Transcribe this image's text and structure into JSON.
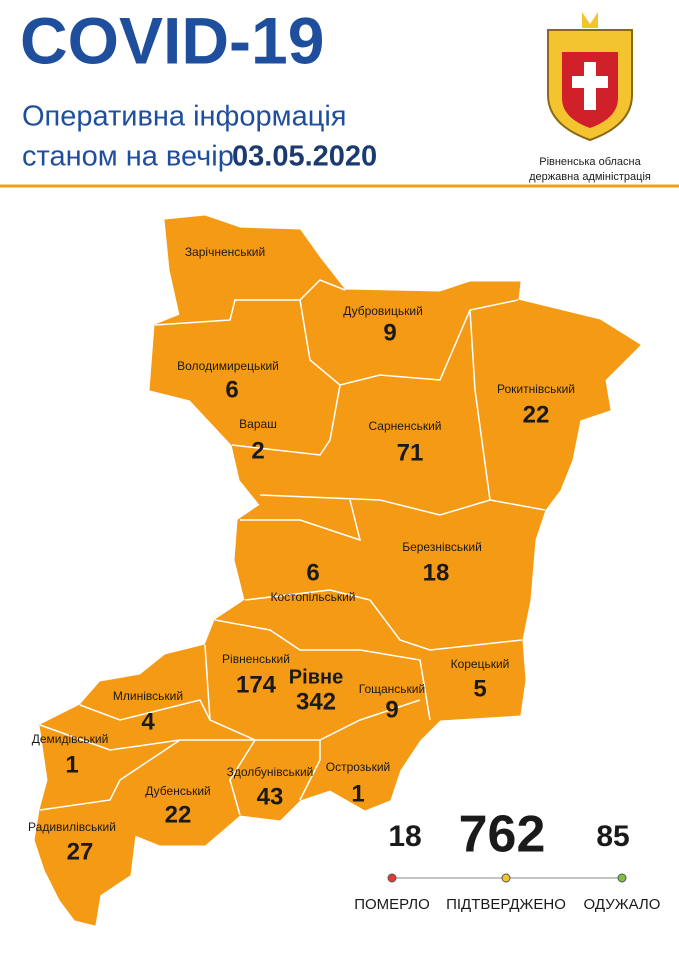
{
  "header": {
    "title": "COVID-19",
    "subtitle": "Оперативна інформація",
    "date_prefix": "станом на вечір",
    "date": "03.05.2020",
    "org_line1": "Рівненська обласна",
    "org_line2": "державна адміністрація"
  },
  "regions": [
    {
      "name": "Зарічненський"
    },
    {
      "name": "Дубровицький",
      "cases": 9
    },
    {
      "name": "Володимирецький",
      "cases": 6
    },
    {
      "name": "Вараш",
      "cases": 2
    },
    {
      "name": "Сарненський",
      "cases": 71
    },
    {
      "name": "Рокитнівський",
      "cases": 22
    },
    {
      "name": "Березнівський",
      "cases": 18
    },
    {
      "name": "Костопільський",
      "cases": 6
    },
    {
      "name": "Рівненський",
      "cases": 174
    },
    {
      "name": "Рівне",
      "cases": 342
    },
    {
      "name": "Гощанський",
      "cases": 9
    },
    {
      "name": "Корецький",
      "cases": 5
    },
    {
      "name": "Млинівський",
      "cases": 4
    },
    {
      "name": "Демидівський",
      "cases": 1
    },
    {
      "name": "Здолбунівський",
      "cases": 43
    },
    {
      "name": "Острозький",
      "cases": 1
    },
    {
      "name": "Дубенський",
      "cases": 22
    },
    {
      "name": "Радивилівський",
      "cases": 27
    }
  ],
  "totals": [
    {
      "value": 18,
      "label": "ПОМЕРЛО",
      "color": "#e53935"
    },
    {
      "value": 762,
      "label": "ПІДТВЕРДЖЕНО",
      "color": "#f4c430"
    },
    {
      "value": 85,
      "label": "ОДУЖАЛО",
      "color": "#7cc242"
    }
  ]
}
